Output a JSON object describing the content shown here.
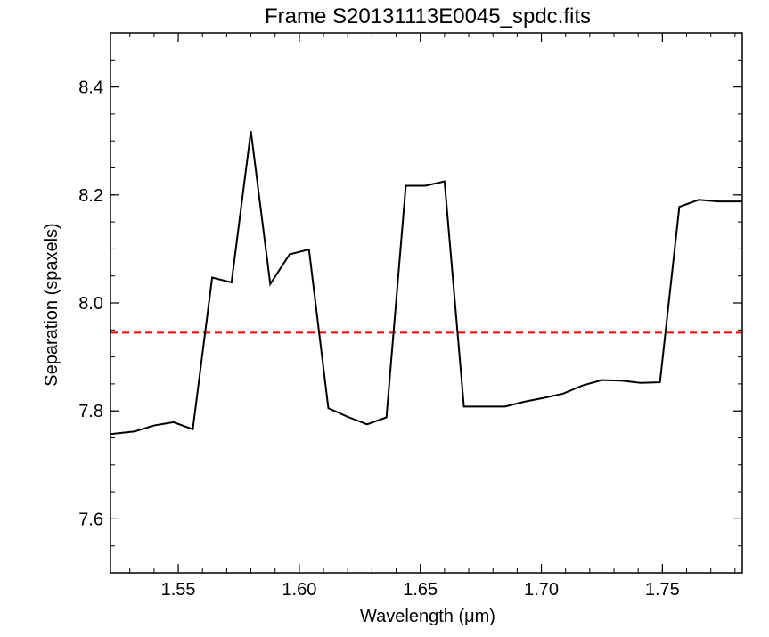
{
  "chart_data": {
    "type": "line",
    "title": "Frame S20131113E0045_spdc.fits",
    "xlabel_prefix": "Wavelength (",
    "xlabel_unit": "μm",
    "xlabel_suffix": ")",
    "ylabel": "Separation (spaxels)",
    "xlim": [
      1.522,
      1.783
    ],
    "ylim": [
      7.5,
      8.5
    ],
    "x_ticks": [
      1.55,
      1.6,
      1.65,
      1.7,
      1.75
    ],
    "x_tick_labels": [
      "1.55",
      "1.60",
      "1.65",
      "1.70",
      "1.75"
    ],
    "y_ticks": [
      7.6,
      7.8,
      8.0,
      8.2,
      8.4
    ],
    "y_tick_labels": [
      "7.6",
      "7.8",
      "8.0",
      "8.2",
      "8.4"
    ],
    "x_minor_step": 0.01,
    "y_minor_step": 0.05,
    "grid": false,
    "series": [
      {
        "color": "#000000",
        "style": "solid",
        "x": [
          1.522,
          1.532,
          1.54,
          1.548,
          1.556,
          1.564,
          1.572,
          1.58,
          1.588,
          1.596,
          1.604,
          1.612,
          1.62,
          1.628,
          1.636,
          1.644,
          1.652,
          1.66,
          1.668,
          1.676,
          1.685,
          1.693,
          1.701,
          1.709,
          1.717,
          1.725,
          1.733,
          1.741,
          1.749,
          1.757,
          1.765,
          1.773,
          1.783
        ],
        "y": [
          7.757,
          7.762,
          7.773,
          7.779,
          7.766,
          8.047,
          8.038,
          8.318,
          8.035,
          8.09,
          8.099,
          7.805,
          7.789,
          7.775,
          7.788,
          8.217,
          8.217,
          8.225,
          7.808,
          7.808,
          7.808,
          7.817,
          7.824,
          7.832,
          7.847,
          7.857,
          7.856,
          7.852,
          7.853,
          8.178,
          8.191,
          8.188,
          8.188
        ]
      }
    ],
    "reference_line": {
      "y": 7.945,
      "color": "#ff0000",
      "style": "dashed"
    }
  }
}
